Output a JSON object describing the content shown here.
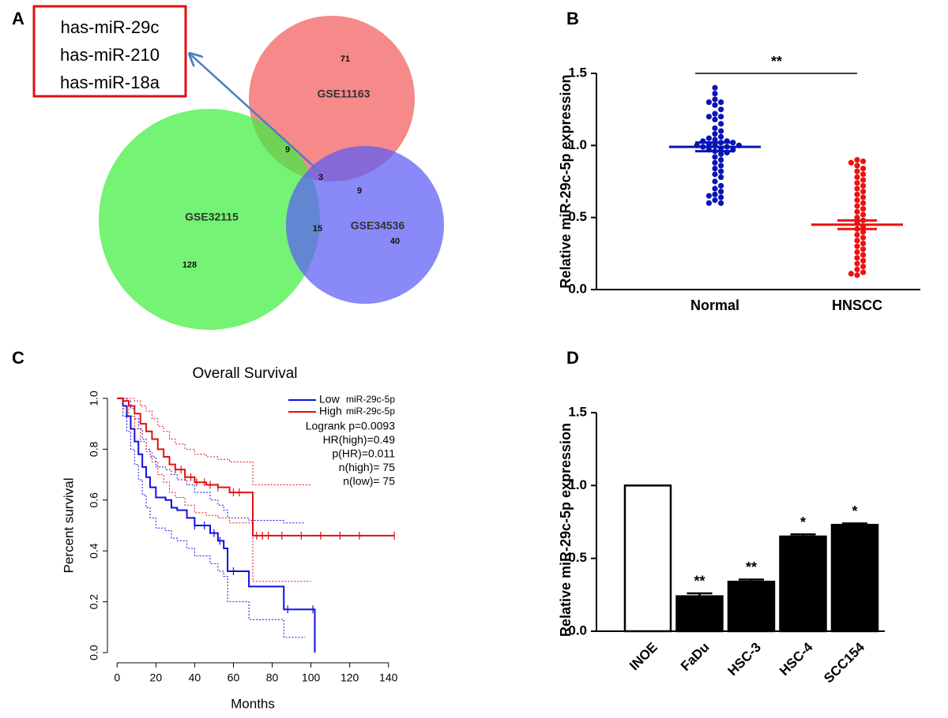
{
  "chart_data": [
    {
      "type": "venn",
      "panel": "A",
      "sets": [
        {
          "name": "GSE11163",
          "color": "#f25c5c"
        },
        {
          "name": "GSE32115",
          "color": "#3fee3f"
        },
        {
          "name": "GSE34536",
          "color": "#5c5cf5"
        }
      ],
      "counts": [
        71,
        128,
        40,
        9,
        9,
        15,
        3
      ],
      "highlight": [
        "has-miR-29c",
        "has-miR-210",
        "has-miR-18a"
      ]
    },
    {
      "type": "dot",
      "panel": "B",
      "ylabel": "Relative miR-29c-5p expression",
      "categories": [
        "Normal",
        "HNSCC"
      ],
      "groups": [
        {
          "color": "#0a14b4",
          "mean": 0.99,
          "sem": 0.03,
          "values": [
            1.4,
            1.36,
            1.32,
            1.3,
            1.3,
            1.28,
            1.25,
            1.22,
            1.2,
            1.2,
            1.18,
            1.15,
            1.12,
            1.1,
            1.08,
            1.06,
            1.05,
            1.04,
            1.03,
            1.03,
            1.02,
            1.02,
            1.01,
            1.0,
            1.0,
            1.0,
            0.99,
            0.99,
            0.98,
            0.97,
            0.97,
            0.96,
            0.95,
            0.94,
            0.92,
            0.9,
            0.88,
            0.86,
            0.84,
            0.82,
            0.8,
            0.78,
            0.75,
            0.72,
            0.7,
            0.68,
            0.66,
            0.65,
            0.64,
            0.62,
            0.6,
            0.6
          ]
        },
        {
          "color": "#ee1111",
          "mean": 0.45,
          "sem": 0.03,
          "values": [
            0.9,
            0.89,
            0.88,
            0.86,
            0.84,
            0.82,
            0.8,
            0.78,
            0.76,
            0.74,
            0.72,
            0.7,
            0.68,
            0.66,
            0.64,
            0.62,
            0.6,
            0.58,
            0.56,
            0.54,
            0.52,
            0.5,
            0.48,
            0.46,
            0.44,
            0.42,
            0.4,
            0.38,
            0.36,
            0.34,
            0.32,
            0.3,
            0.28,
            0.26,
            0.24,
            0.22,
            0.2,
            0.18,
            0.16,
            0.14,
            0.12,
            0.11,
            0.1
          ]
        }
      ],
      "significance": "**",
      "ylim": [
        0,
        1.5
      ],
      "yticks": [
        {
          "value": 0,
          "label": "0.0"
        },
        {
          "value": 0.5,
          "label": "0.5"
        },
        {
          "value": 1,
          "label": "1.0"
        },
        {
          "value": 1.5,
          "label": "1.5"
        }
      ]
    },
    {
      "type": "survival",
      "panel": "C",
      "title": "Overall Survival",
      "xlabel": "Months",
      "ylabel": "Percent survival",
      "xlim": [
        -5,
        145
      ],
      "ylim": [
        -0.04,
        1.04
      ],
      "xticks": [
        0,
        20,
        40,
        60,
        80,
        100,
        120,
        140
      ],
      "yticks": [
        {
          "value": 0,
          "label": "0.0"
        },
        {
          "value": 0.2,
          "label": "0.2"
        },
        {
          "value": 0.4,
          "label": "0.4"
        },
        {
          "value": 0.6,
          "label": "0.6"
        },
        {
          "value": 0.8,
          "label": "0.8"
        },
        {
          "value": 1,
          "label": "1.0"
        }
      ],
      "series": [
        {
          "name": "Low",
          "label": "miR-29c-5p",
          "color": "#1010e0",
          "x": [
            0,
            3,
            5,
            7,
            9,
            11,
            13,
            15,
            17,
            20,
            25,
            28,
            31,
            36,
            40,
            44,
            48,
            52,
            55,
            57,
            68,
            86,
            102
          ],
          "values": [
            1,
            0.97,
            0.93,
            0.88,
            0.83,
            0.78,
            0.73,
            0.69,
            0.65,
            0.61,
            0.6,
            0.57,
            0.56,
            0.53,
            0.5,
            0.5,
            0.47,
            0.44,
            0.41,
            0.32,
            0.26,
            0.17,
            0
          ],
          "ci_x": [
            0,
            3,
            5,
            7,
            9,
            11,
            13,
            15,
            17,
            20,
            25,
            28,
            31,
            36,
            40,
            44,
            48,
            52,
            55,
            57,
            68,
            86,
            97
          ],
          "upper": [
            1,
            1,
            0.99,
            0.96,
            0.92,
            0.88,
            0.84,
            0.8,
            0.77,
            0.73,
            0.72,
            0.7,
            0.68,
            0.66,
            0.63,
            0.63,
            0.6,
            0.58,
            0.56,
            0.53,
            0.52,
            0.51,
            0.51
          ],
          "lower": [
            1,
            0.93,
            0.87,
            0.8,
            0.74,
            0.68,
            0.62,
            0.57,
            0.53,
            0.49,
            0.48,
            0.45,
            0.44,
            0.41,
            0.38,
            0.38,
            0.35,
            0.32,
            0.3,
            0.2,
            0.13,
            0.06,
            0.06
          ],
          "censored": [
            40,
            45,
            50,
            53,
            60,
            88,
            101
          ]
        },
        {
          "name": "High",
          "label": "miR-29c-5p",
          "color": "#e01010",
          "x": [
            0,
            3,
            6,
            9,
            12,
            15,
            18,
            21,
            24,
            27,
            30,
            35,
            40,
            46,
            52,
            58,
            65,
            70,
            143
          ],
          "values": [
            1,
            0.99,
            0.97,
            0.94,
            0.9,
            0.87,
            0.84,
            0.8,
            0.77,
            0.74,
            0.72,
            0.69,
            0.67,
            0.66,
            0.65,
            0.63,
            0.63,
            0.46,
            0.46
          ],
          "ci_x": [
            0,
            3,
            6,
            9,
            12,
            15,
            18,
            21,
            24,
            27,
            30,
            35,
            40,
            46,
            52,
            58,
            65,
            70,
            100
          ],
          "upper": [
            1,
            1,
            1,
            0.99,
            0.97,
            0.95,
            0.92,
            0.89,
            0.87,
            0.84,
            0.82,
            0.8,
            0.78,
            0.77,
            0.76,
            0.75,
            0.75,
            0.66,
            0.66
          ],
          "lower": [
            1,
            0.96,
            0.93,
            0.88,
            0.83,
            0.79,
            0.75,
            0.7,
            0.67,
            0.63,
            0.61,
            0.58,
            0.55,
            0.54,
            0.53,
            0.51,
            0.51,
            0.28,
            0.28
          ],
          "censored": [
            30,
            33,
            35,
            38,
            41,
            45,
            48,
            52,
            60,
            63,
            72,
            75,
            78,
            85,
            95,
            105,
            115,
            125,
            143
          ]
        }
      ],
      "stats": [
        "Logrank p=0.0093",
        "HR(high)=0.49",
        "p(HR)=0.011",
        "n(high)= 75",
        "n(low)= 75"
      ]
    },
    {
      "type": "bar",
      "panel": "D",
      "ylabel": "Relative miR-29c-5p expression",
      "categories": [
        "INOE",
        "FaDu",
        "HSC-3",
        "HSC-4",
        "SCC154"
      ],
      "values": [
        1,
        0.24,
        0.34,
        0.65,
        0.73
      ],
      "errors": [
        null,
        0.02,
        0.015,
        0.015,
        0.01
      ],
      "colors": [
        "#ffffff",
        "#000000",
        "#000000",
        "#000000",
        "#000000"
      ],
      "significance": [
        null,
        "**",
        "**",
        "*",
        "*"
      ],
      "ylim": [
        0,
        1.5
      ],
      "yticks": [
        {
          "value": 0,
          "label": "0.0"
        },
        {
          "value": 0.5,
          "label": "0.5"
        },
        {
          "value": 1,
          "label": "1.0"
        },
        {
          "value": 1.5,
          "label": "1.5"
        }
      ]
    }
  ]
}
